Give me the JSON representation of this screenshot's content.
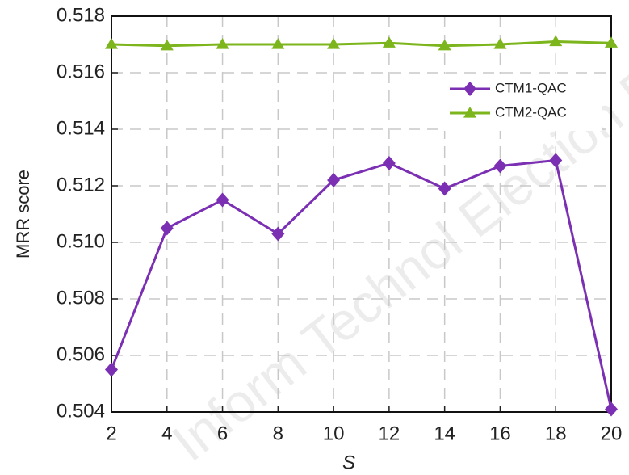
{
  "chart_data": {
    "type": "line",
    "xlabel": "S",
    "ylabel": "MRR score",
    "x": [
      2,
      4,
      6,
      8,
      10,
      12,
      14,
      16,
      18,
      20
    ],
    "series": [
      {
        "name": "CTM1-QAC",
        "color": "#7b2fb3",
        "marker": "diamond",
        "values": [
          0.5055,
          0.5105,
          0.5115,
          0.5103,
          0.5122,
          0.5128,
          0.5119,
          0.5127,
          0.5129,
          0.5041
        ]
      },
      {
        "name": "CTM2-QAC",
        "color": "#7cb51c",
        "marker": "triangle",
        "values": [
          0.517,
          0.51695,
          0.517,
          0.517,
          0.517,
          0.51705,
          0.51695,
          0.517,
          0.5171,
          0.51705
        ]
      }
    ],
    "xlim": [
      2,
      20
    ],
    "xticks": [
      2,
      4,
      6,
      8,
      10,
      12,
      14,
      16,
      18,
      20
    ],
    "ylim": [
      0.504,
      0.518
    ],
    "yticks": [
      0.504,
      0.506,
      0.508,
      {
        "value": 0.51,
        "label": "0.510"
      },
      0.512,
      0.514,
      0.516,
      0.518
    ],
    "grid": true,
    "legend": "upper right",
    "watermark": "Inform Technol Election E"
  }
}
